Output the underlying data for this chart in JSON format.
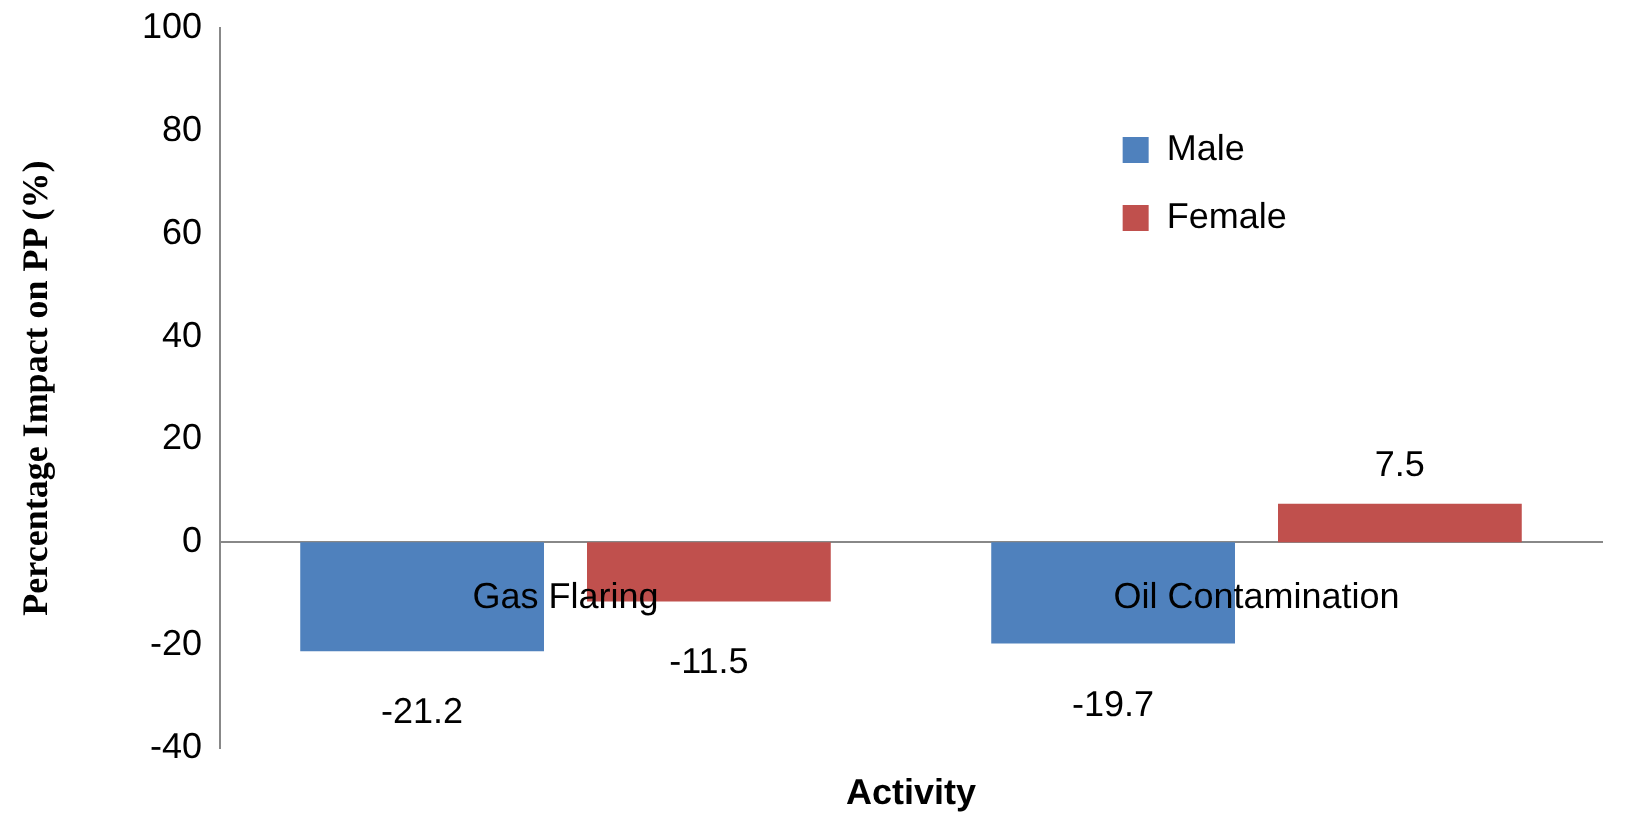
{
  "chart_data": {
    "type": "bar",
    "xlabel": "Activity",
    "ylabel": "Percentage Impact on PP (%)",
    "categories": [
      "Gas Flaring",
      "Oil Contamination"
    ],
    "series": [
      {
        "name": "Male",
        "color": "#4f81bd",
        "values": [
          -21.2,
          -19.7
        ]
      },
      {
        "name": "Female",
        "color": "#c0504d",
        "values": [
          -11.5,
          7.5
        ]
      }
    ],
    "ylim": [
      -40,
      100
    ],
    "yticks": [
      -40,
      -20,
      0,
      20,
      40,
      60,
      80,
      100
    ],
    "grid": false,
    "legend": "top right",
    "data_labels": true
  }
}
